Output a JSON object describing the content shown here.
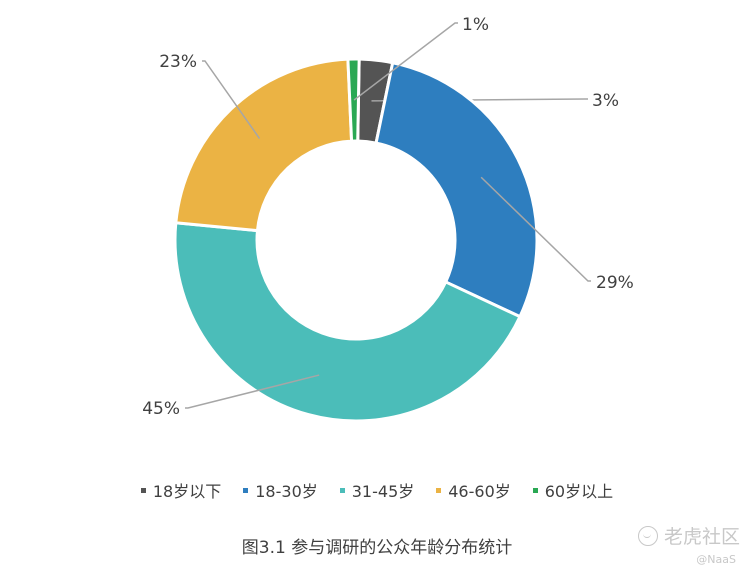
{
  "chart_data": {
    "type": "pie",
    "categories": [
      "18岁以下",
      "18-30岁",
      "31-45岁",
      "46-60岁",
      "60岁以上"
    ],
    "values": [
      3,
      29,
      45,
      23,
      1
    ],
    "value_labels": [
      "3%",
      "29%",
      "45%",
      "23%",
      "1%"
    ],
    "colors": [
      "#545454",
      "#2e7ebf",
      "#4bbdb9",
      "#ebb344",
      "#2aa854"
    ],
    "donut": true,
    "legend_position": "bottom",
    "caption": "图3.1 参与调研的公众年龄分布统计"
  },
  "watermark": {
    "brand": "老虎社区",
    "handle": "@NaaS"
  }
}
